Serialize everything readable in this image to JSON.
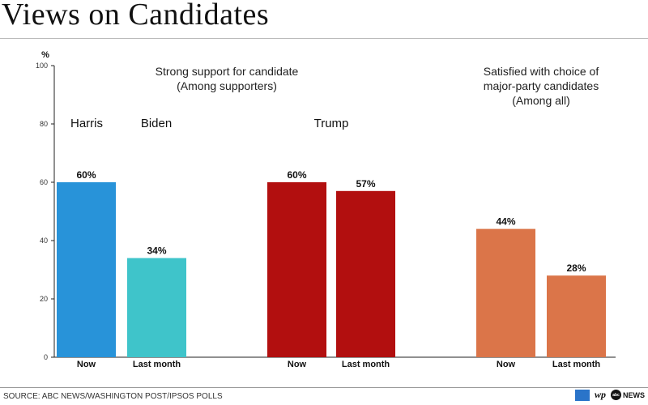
{
  "title": "Views on Candidates",
  "source": "SOURCE: ABC NEWS/WASHINGTON POST/IPSOS POLLS",
  "logos": {
    "wp": "wp",
    "abc_dot": "abc",
    "abc_text": "NEWS"
  },
  "chart_data": {
    "type": "bar",
    "ylabel": "%",
    "ylim": [
      0,
      100
    ],
    "yticks": [
      0,
      20,
      40,
      60,
      80,
      100
    ],
    "group_titles": [
      "Strong support for candidate",
      "(Among supporters)",
      "Satisfied with choice of",
      "major-party candidates",
      "(Among all)"
    ],
    "candidate_labels": [
      "Harris",
      "Biden",
      "Trump"
    ],
    "bars": [
      {
        "label": "Now",
        "value": 60,
        "value_label": "60%",
        "color": "#2893d9"
      },
      {
        "label": "Last month",
        "value": 34,
        "value_label": "34%",
        "color": "#3fc4ca"
      },
      {
        "label": "Now",
        "value": 60,
        "value_label": "60%",
        "color": "#b20f0f"
      },
      {
        "label": "Last month",
        "value": 57,
        "value_label": "57%",
        "color": "#b20f0f"
      },
      {
        "label": "Now",
        "value": 44,
        "value_label": "44%",
        "color": "#db7549"
      },
      {
        "label": "Last month",
        "value": 28,
        "value_label": "28%",
        "color": "#db7549"
      }
    ]
  }
}
